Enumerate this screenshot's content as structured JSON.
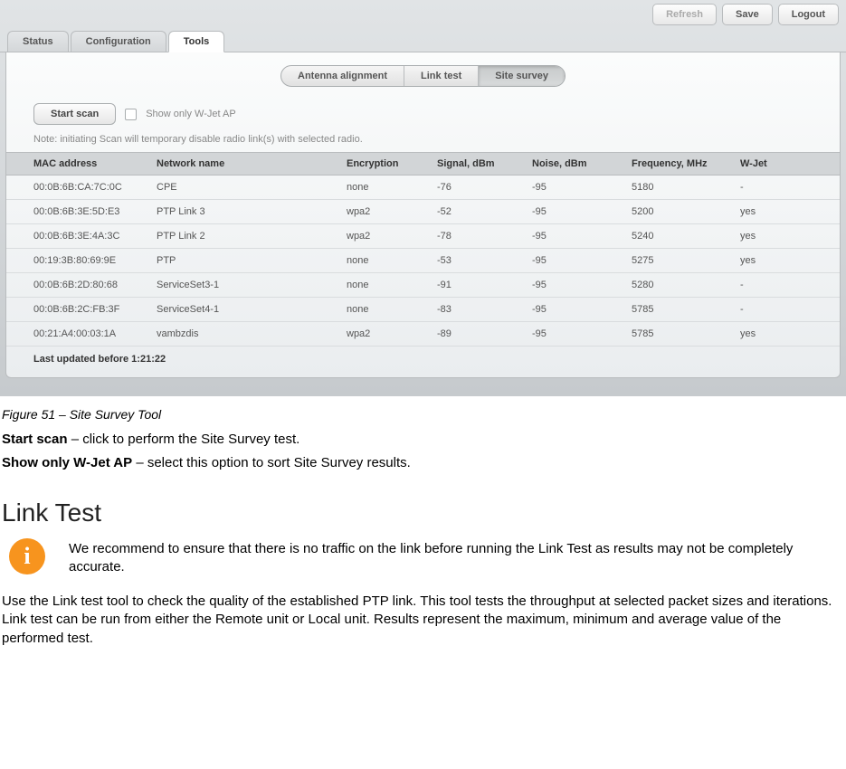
{
  "colors": {
    "panel_bg_top": "#fbfcfc",
    "panel_bg_bottom": "#eaedef",
    "window_bg_top": "#e1e4e6",
    "window_bg_bottom": "#c6cacd",
    "border": "#b9bcbe",
    "header_row_bg": "#d2d5d7",
    "muted_text": "#888888",
    "info_icon_bg": "#f7941e"
  },
  "top_buttons": {
    "refresh": "Refresh",
    "save": "Save",
    "logout": "Logout"
  },
  "main_tabs": {
    "items": [
      "Status",
      "Configuration",
      "Tools"
    ],
    "active_index": 2
  },
  "sub_tabs": {
    "items": [
      "Antenna alignment",
      "Link test",
      "Site survey"
    ],
    "active_index": 2
  },
  "toolbar": {
    "start_scan": "Start scan",
    "show_only_label": "Show only W-Jet AP",
    "show_only_checked": false
  },
  "note_text": "Note: initiating Scan will temporary disable radio link(s) with selected radio.",
  "table": {
    "columns": [
      "MAC address",
      "Network name",
      "Encryption",
      "Signal, dBm",
      "Noise, dBm",
      "Frequency, MHz",
      "W-Jet"
    ],
    "rows": [
      [
        "00:0B:6B:CA:7C:0C",
        "CPE",
        "none",
        "-76",
        "-95",
        "5180",
        "-"
      ],
      [
        "00:0B:6B:3E:5D:E3",
        "PTP Link 3",
        "wpa2",
        "-52",
        "-95",
        "5200",
        "yes"
      ],
      [
        "00:0B:6B:3E:4A:3C",
        "PTP Link 2",
        "wpa2",
        "-78",
        "-95",
        "5240",
        "yes"
      ],
      [
        "00:19:3B:80:69:9E",
        "PTP",
        "none",
        "-53",
        "-95",
        "5275",
        "yes"
      ],
      [
        "00:0B:6B:2D:80:68",
        "ServiceSet3-1",
        "none",
        "-91",
        "-95",
        "5280",
        "-"
      ],
      [
        "00:0B:6B:2C:FB:3F",
        "ServiceSet4-1",
        "none",
        "-83",
        "-95",
        "5785",
        "-"
      ],
      [
        "00:21:A4:00:03:1A",
        "vambzdis",
        "wpa2",
        "-89",
        "-95",
        "5785",
        "yes"
      ]
    ]
  },
  "last_updated_label": "Last updated before 1:21:22",
  "doc": {
    "caption": "Figure 51 – Site Survey Tool",
    "def1_term": "Start scan",
    "def1_text": " – click to perform the Site Survey test.",
    "def2_term": "Show only W-Jet AP",
    "def2_text": " – select this option to sort Site Survey results.",
    "heading": "Link Test",
    "info_text": "We recommend to ensure that there is no traffic on the link before running the Link Test as results may not be completely accurate.",
    "body": "Use the Link test tool to check the quality of the established PTP link. This tool tests the throughput at selected packet sizes and iterations. Link test can be run from either the Remote unit or Local unit. Results represent the maximum, minimum and average value of the performed test."
  }
}
